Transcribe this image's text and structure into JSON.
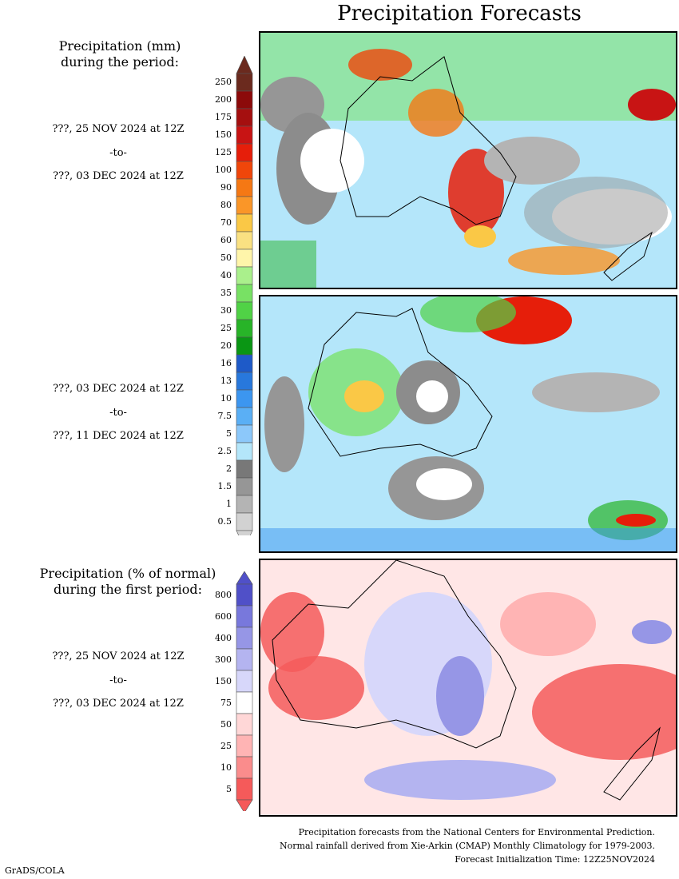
{
  "title": "Precipitation Forecasts",
  "section_amount": {
    "header_line1": "Precipitation (mm)",
    "header_line2": "during the period:"
  },
  "section_anomaly": {
    "header_line1": "Precipitation (% of normal)",
    "header_line2": "during the first period:"
  },
  "periods": [
    {
      "start": "???, 25 NOV 2024 at 12Z",
      "sep": "-to-",
      "end": "???, 03 DEC 2024 at 12Z"
    },
    {
      "start": "???, 03 DEC 2024 at 12Z",
      "sep": "-to-",
      "end": "???, 11 DEC 2024 at 12Z"
    },
    {
      "start": "???, 25 NOV 2024 at 12Z",
      "sep": "-to-",
      "end": "???, 03 DEC 2024 at 12Z"
    }
  ],
  "amount_colorbar": {
    "labels": [
      "250",
      "200",
      "175",
      "150",
      "125",
      "100",
      "90",
      "80",
      "70",
      "60",
      "50",
      "40",
      "35",
      "30",
      "25",
      "20",
      "16",
      "13",
      "10",
      "7.5",
      "5",
      "2.5",
      "2",
      "1.5",
      "1",
      "0.5"
    ],
    "colors": [
      "#6b2a1e",
      "#8c0a0a",
      "#a50f0f",
      "#c81414",
      "#e61e0a",
      "#f0460a",
      "#f57814",
      "#fa9628",
      "#fac846",
      "#fae182",
      "#fff5aa",
      "#aaf08c",
      "#78e164",
      "#50d246",
      "#28b428",
      "#0a9614",
      "#1e5ac8",
      "#2878dc",
      "#3c96f0",
      "#5aaff5",
      "#8cc8fa",
      "#b4e6fa",
      "#787878",
      "#969696",
      "#b4b4b4",
      "#d2d2d2"
    ]
  },
  "anomaly_colorbar": {
    "labels": [
      "800",
      "600",
      "400",
      "300",
      "150",
      "75",
      "50",
      "25",
      "10",
      "5"
    ],
    "colors": [
      "#5050c8",
      "#7878dc",
      "#9696e6",
      "#b4b4f0",
      "#d7d7fa",
      "#ffffff",
      "#ffd7d7",
      "#ffb4b4",
      "#fa8c8c",
      "#f55a5a"
    ]
  },
  "footer": {
    "line1": "Precipitation forecasts from the National Centers for Environmental Prediction.",
    "line2": "Normal rainfall derived from Xie-Arkin (CMAP) Monthly Climatology for 1979-2003.",
    "line3": "Forecast Initialization Time: 12Z25NOV2024"
  },
  "credit": "GrADS/COLA"
}
